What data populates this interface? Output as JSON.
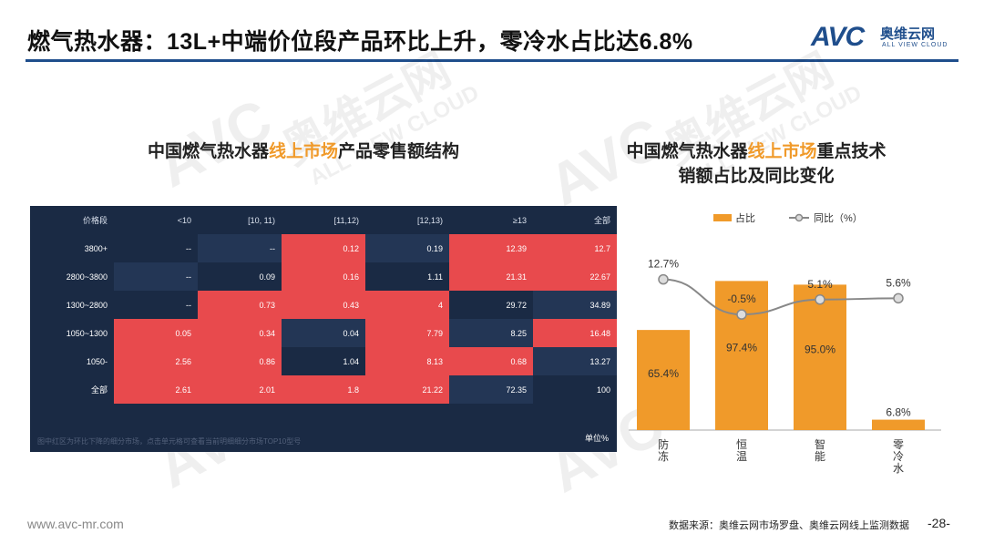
{
  "header": {
    "title": "燃气热水器：13L+中端价位段产品环比上升，零冷水占比达6.8%",
    "logo_mark": "AVC",
    "logo_cn": "奥维云网",
    "logo_en": "ALL VIEW CLOUD"
  },
  "watermark": {
    "cn": "奥维云网",
    "en": "ALL VIEW CLOUD",
    "mark": "AVC"
  },
  "colors": {
    "accent": "#f09a2a",
    "brand": "#1f4e8c",
    "heat_high": "#e84a4d",
    "heat_low": "#1a2a44",
    "heat_alt": "#233655"
  },
  "left_panel": {
    "title_pre": "中国燃气热水器",
    "title_hl": "线上市场",
    "title_post": "产品零售额结构"
  },
  "right_panel": {
    "title_line1_pre": "中国燃气热水器",
    "title_line1_hl": "线上市场",
    "title_line1_post": "重点技术",
    "title_line2": "销额占比及同比变化"
  },
  "chart_data": [
    {
      "type": "heatmap",
      "title": "中国燃气热水器线上市场产品零售额结构",
      "corner_label": "价格段",
      "columns": [
        "<10",
        "[10, 11)",
        "[11,12)",
        "[12,13)",
        "≥13",
        "全部"
      ],
      "rows": [
        {
          "label": "3800+",
          "values": [
            "--",
            "--",
            "0.12",
            "0.19",
            "12.39",
            "12.7"
          ],
          "highlight": [
            false,
            false,
            true,
            false,
            true,
            true
          ]
        },
        {
          "label": "2800~3800",
          "values": [
            "--",
            "0.09",
            "0.16",
            "1.11",
            "21.31",
            "22.67"
          ],
          "highlight": [
            false,
            false,
            true,
            false,
            true,
            true
          ]
        },
        {
          "label": "1300~2800",
          "values": [
            "--",
            "0.73",
            "0.43",
            "4",
            "29.72",
            "34.89"
          ],
          "highlight": [
            false,
            true,
            true,
            true,
            false,
            false
          ]
        },
        {
          "label": "1050~1300",
          "values": [
            "0.05",
            "0.34",
            "0.04",
            "7.79",
            "8.25",
            "16.48"
          ],
          "highlight": [
            true,
            true,
            false,
            true,
            false,
            true
          ]
        },
        {
          "label": "1050-",
          "values": [
            "2.56",
            "0.86",
            "1.04",
            "8.13",
            "0.68",
            "13.27"
          ],
          "highlight": [
            true,
            true,
            false,
            true,
            true,
            false
          ]
        },
        {
          "label": "全部",
          "values": [
            "2.61",
            "2.01",
            "1.8",
            "21.22",
            "72.35",
            "100"
          ],
          "highlight": [
            true,
            true,
            true,
            true,
            false,
            false
          ]
        }
      ],
      "footnote": "图中红区为环比下降的细分市场，点击单元格可查看当前明细细分市场TOP10型号",
      "unit": "单位%"
    },
    {
      "type": "bar",
      "title": "中国燃气热水器线上市场重点技术销额占比及同比变化",
      "categories": [
        "防冻",
        "恒温",
        "智能",
        "零冷水"
      ],
      "series": [
        {
          "name": "占比",
          "type": "bar",
          "values": [
            65.4,
            97.4,
            95.0,
            6.8
          ],
          "labels": [
            "65.4%",
            "97.4%",
            "95.0%",
            "6.8%"
          ]
        },
        {
          "name": "同比（%）",
          "type": "line",
          "values": [
            12.7,
            -0.5,
            5.1,
            5.6
          ],
          "labels": [
            "12.7%",
            "-0.5%",
            "5.1%",
            "5.6%"
          ]
        }
      ],
      "legend": [
        "占比",
        "同比（%）"
      ],
      "legend_position": "top"
    }
  ],
  "footer": {
    "website": "www.avc-mr.com",
    "source": "数据来源：奥维云网市场罗盘、奥维云网线上监测数据",
    "page": "-28-"
  }
}
